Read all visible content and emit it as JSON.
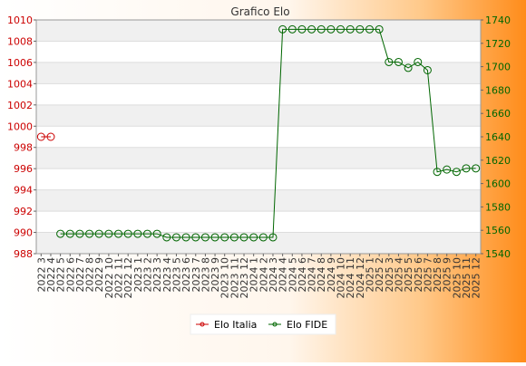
{
  "chart_data": {
    "type": "line",
    "title": "Grafico Elo",
    "categories": [
      "2022 3",
      "2022 4",
      "2022 5",
      "2022 6",
      "2022 7",
      "2022 8",
      "2022 9",
      "2022 10",
      "2022 11",
      "2022 12",
      "2023 1",
      "2023 2",
      "2023 3",
      "2023 4",
      "2023 5",
      "2023 6",
      "2023 7",
      "2023 8",
      "2023 9",
      "2023 10",
      "2023 11",
      "2023 12",
      "2024 1",
      "2024 2",
      "2024 3",
      "2024 4",
      "2024 5",
      "2024 6",
      "2024 7",
      "2024 8",
      "2024 9",
      "2024 10",
      "2024 11",
      "2024 12",
      "2025 1",
      "2025 2",
      "2025 3",
      "2025 4",
      "2025 5",
      "2025 6",
      "2025 7",
      "2025 8",
      "2025 9",
      "2025 10",
      "2025 11",
      "2025 12"
    ],
    "left_axis": {
      "ylim": [
        988,
        1010
      ],
      "ticks": [
        988,
        990,
        992,
        994,
        996,
        998,
        1000,
        1002,
        1004,
        1006,
        1008,
        1010
      ],
      "color": "#cc0000"
    },
    "right_axis": {
      "ylim": [
        1540,
        1740
      ],
      "ticks": [
        1540,
        1560,
        1580,
        1600,
        1620,
        1640,
        1660,
        1680,
        1700,
        1720,
        1740
      ],
      "color": "#006600"
    },
    "series": [
      {
        "name": "Elo Italia",
        "axis": "left",
        "color": "#cc0000",
        "values": [
          999,
          999,
          null,
          null,
          null,
          null,
          null,
          null,
          null,
          null,
          null,
          null,
          null,
          null,
          null,
          null,
          null,
          null,
          null,
          null,
          null,
          null,
          null,
          null,
          null,
          null,
          null,
          null,
          null,
          null,
          null,
          null,
          null,
          null,
          null,
          null,
          null,
          null,
          null,
          null,
          null,
          null,
          null,
          null,
          null,
          null
        ]
      },
      {
        "name": "Elo FIDE",
        "axis": "right",
        "color": "#006600",
        "values": [
          null,
          null,
          1557,
          1557,
          1557,
          1557,
          1557,
          1557,
          1557,
          1557,
          1557,
          1557,
          1557,
          1554,
          1554,
          1554,
          1554,
          1554,
          1554,
          1554,
          1554,
          1554,
          1554,
          1554,
          1554,
          1732,
          1732,
          1732,
          1732,
          1732,
          1732,
          1732,
          1732,
          1732,
          1732,
          1732,
          1704,
          1704,
          1699,
          1704,
          1697,
          1610,
          1612,
          1610,
          1613,
          1613
        ]
      }
    ],
    "grid": true,
    "legend_position": "bottom"
  }
}
